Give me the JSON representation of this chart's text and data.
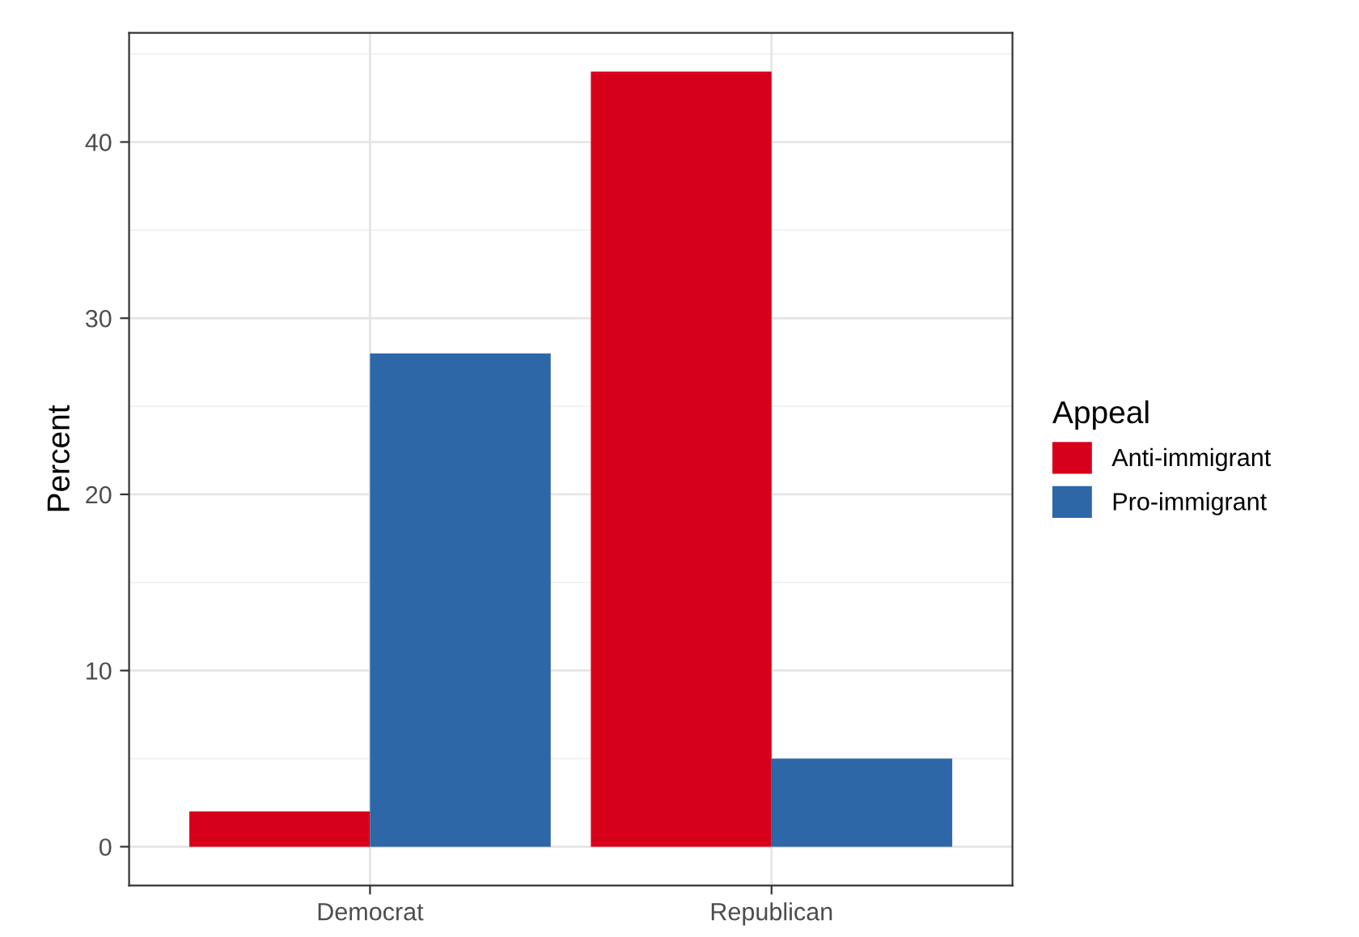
{
  "chart_data": {
    "type": "bar",
    "ylabel": "Percent",
    "legend_title": "Appeal",
    "categories": [
      "Democrat",
      "Republican"
    ],
    "series": [
      {
        "name": "Anti-immigrant",
        "color": "#d7001a",
        "values": [
          2,
          44
        ]
      },
      {
        "name": "Pro-immigrant",
        "color": "#2d67a7",
        "values": [
          28,
          5
        ]
      }
    ],
    "ylim": [
      -2.2,
      46.2
    ],
    "yticks": [
      0,
      10,
      20,
      30,
      40
    ],
    "grid": true,
    "legend": "right"
  }
}
